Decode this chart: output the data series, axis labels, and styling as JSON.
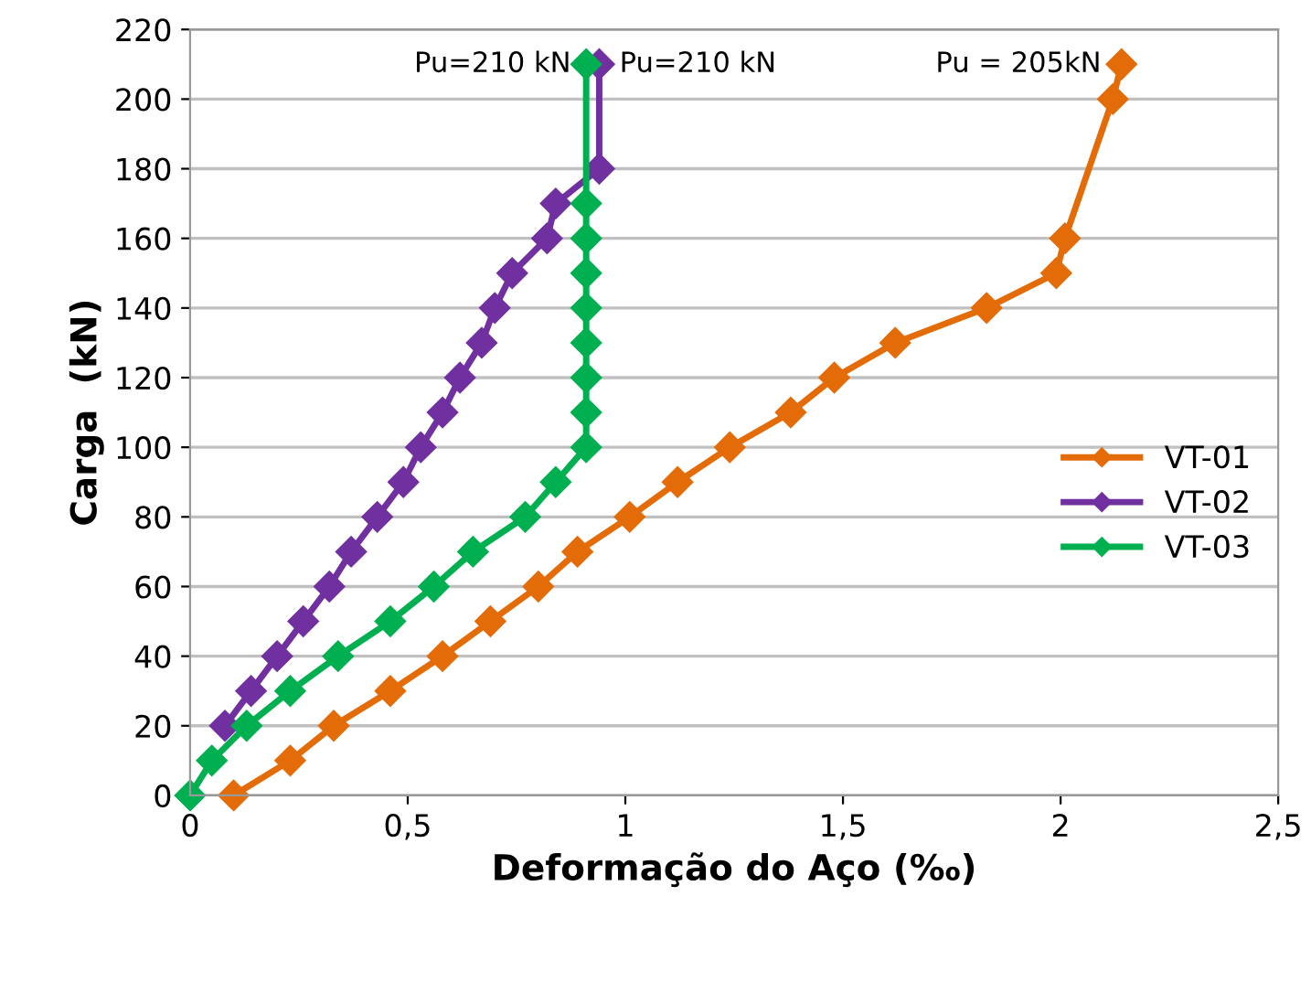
{
  "chart_data": {
    "type": "line",
    "xlabel": "Deformação do Aço (‰)",
    "ylabel": "Carga  (kN)",
    "xlim": [
      0,
      2.5
    ],
    "xticks": [
      0,
      {
        "value": 0.5,
        "label": "0,5"
      },
      1,
      {
        "value": 1.5,
        "label": "1,5"
      },
      2,
      {
        "value": 2.5,
        "label": "2,5"
      }
    ],
    "ylim": [
      0,
      220
    ],
    "yticks": [
      0,
      20,
      40,
      60,
      80,
      100,
      120,
      140,
      160,
      180,
      200,
      220
    ],
    "grid": "y",
    "legend": "right",
    "marker": "diamond",
    "line_style": "solid",
    "series": [
      {
        "name": "VT-01",
        "color": "#e36c09",
        "x": [
          0.1,
          0.23,
          0.33,
          0.46,
          0.58,
          0.69,
          0.8,
          0.89,
          1.01,
          1.12,
          1.24,
          1.38,
          1.48,
          1.62,
          1.83,
          1.99,
          2.01,
          2.12,
          2.14
        ],
        "values": [
          0,
          10,
          20,
          30,
          40,
          50,
          60,
          70,
          80,
          90,
          100,
          110,
          120,
          130,
          140,
          150,
          160,
          200,
          210
        ]
      },
      {
        "name": "VT-02",
        "color": "#7030a0",
        "x": [
          0.08,
          0.14,
          0.2,
          0.26,
          0.32,
          0.37,
          0.43,
          0.49,
          0.53,
          0.58,
          0.62,
          0.67,
          0.7,
          0.74,
          0.82,
          0.84,
          0.94,
          0.94
        ],
        "values": [
          20,
          30,
          40,
          50,
          60,
          70,
          80,
          90,
          100,
          110,
          120,
          130,
          140,
          150,
          160,
          170,
          180,
          210
        ]
      },
      {
        "name": "VT-03",
        "color": "#00b050",
        "x": [
          0.0,
          0.05,
          0.13,
          0.23,
          0.34,
          0.46,
          0.56,
          0.65,
          0.77,
          0.84,
          0.91,
          0.91,
          0.91,
          0.91,
          0.91,
          0.91,
          0.91,
          0.91,
          0.91
        ],
        "values": [
          0,
          10,
          20,
          30,
          40,
          50,
          60,
          70,
          80,
          90,
          100,
          110,
          120,
          130,
          140,
          150,
          160,
          170,
          210
        ]
      }
    ],
    "annotations": [
      {
        "text": "Pu=210 kN",
        "x": 0.91,
        "y": 210
      },
      {
        "text": "Pu=210 kN",
        "x": 0.94,
        "y": 210
      },
      {
        "text": "Pu = 205kN",
        "x": 2.14,
        "y": 210
      }
    ]
  }
}
